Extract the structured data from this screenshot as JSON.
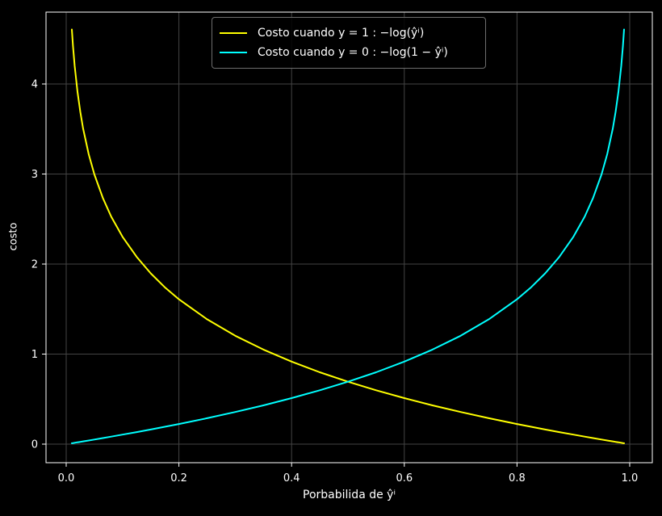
{
  "figure": {
    "background": "#000000",
    "frame_color": "#ffffff",
    "grid_color": "#444444",
    "text_color": "#ffffff",
    "legend_border_color": "#6e6e6e"
  },
  "chart_data": {
    "type": "line",
    "title": "",
    "xlabel": "Porbabilida de ŷⁱ",
    "ylabel": "costo",
    "grid": true,
    "legend_position": "upper center",
    "xlim": [
      -0.039,
      1.039
    ],
    "ylim": [
      -0.21,
      4.8
    ],
    "x_ticks": {
      "values": [
        0.0,
        0.2,
        0.4,
        0.6,
        0.8,
        1.0
      ],
      "labels": [
        "0.0",
        "0.2",
        "0.4",
        "0.6",
        "0.8",
        "1.0"
      ]
    },
    "y_ticks": {
      "values": [
        0,
        1,
        2,
        3,
        4
      ],
      "labels": [
        "0",
        "1",
        "2",
        "3",
        "4"
      ]
    },
    "x": [
      0.01,
      0.012,
      0.015,
      0.02,
      0.025,
      0.03,
      0.04,
      0.05,
      0.065,
      0.08,
      0.1,
      0.125,
      0.15,
      0.175,
      0.2,
      0.25,
      0.3,
      0.35,
      0.4,
      0.45,
      0.5,
      0.55,
      0.6,
      0.65,
      0.7,
      0.75,
      0.8,
      0.825,
      0.85,
      0.875,
      0.9,
      0.92,
      0.935,
      0.95,
      0.96,
      0.97,
      0.975,
      0.98,
      0.985,
      0.988,
      0.99
    ],
    "series": [
      {
        "label": "Costo cuando y = 1 :  −log(ŷⁱ)",
        "formula": "-log(y_hat)",
        "color": "#ffff00",
        "values": [
          4.6052,
          4.4228,
          4.1997,
          3.912,
          3.6889,
          3.5066,
          3.2189,
          2.9957,
          2.7334,
          2.5257,
          2.3026,
          2.0794,
          1.8971,
          1.743,
          1.6094,
          1.3863,
          1.204,
          1.0498,
          0.9163,
          0.7985,
          0.6931,
          0.5978,
          0.5108,
          0.4308,
          0.3567,
          0.2877,
          0.2231,
          0.1924,
          0.1625,
          0.1335,
          0.1054,
          0.0834,
          0.0672,
          0.0513,
          0.0408,
          0.0305,
          0.0253,
          0.0202,
          0.0151,
          0.0121,
          0.0101
        ]
      },
      {
        "label": "Costo cuando y = 0 :  −log(1 − ŷⁱ)",
        "formula": "-log(1 - y_hat)",
        "color": "#00ffff",
        "values": [
          0.0101,
          0.0121,
          0.0151,
          0.0202,
          0.0253,
          0.0305,
          0.0408,
          0.0513,
          0.0672,
          0.0834,
          0.1054,
          0.1335,
          0.1625,
          0.1924,
          0.2231,
          0.2877,
          0.3567,
          0.4308,
          0.5108,
          0.5978,
          0.6931,
          0.7985,
          0.9163,
          1.0498,
          1.204,
          1.3863,
          1.6094,
          1.743,
          1.8971,
          2.0794,
          2.3026,
          2.5257,
          2.7334,
          2.9957,
          3.2189,
          3.5066,
          3.6889,
          3.912,
          4.1997,
          4.4228,
          4.6052
        ]
      }
    ]
  }
}
